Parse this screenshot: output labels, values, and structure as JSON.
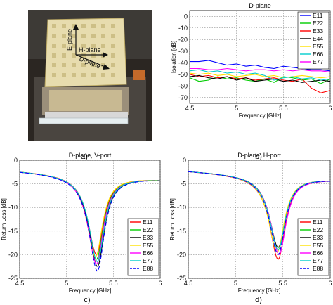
{
  "captions": {
    "a": "a)",
    "b": "b)",
    "c": "c)",
    "d": "d)"
  },
  "photo": {
    "labels": {
      "e_plane": "E-plane",
      "h_plane": "H-plane",
      "d_plane": "D-plane"
    }
  },
  "chart_data": [
    {
      "id": "b",
      "type": "line",
      "title": "D-plane",
      "xlabel": "Frequency [GHz]",
      "ylabel": "Isolation [dB]",
      "xlim": [
        4.5,
        6
      ],
      "ylim": [
        -75,
        5
      ],
      "xticks": [
        4.5,
        5,
        5.5,
        6
      ],
      "xtick_labels": [
        "4.5",
        "5",
        "5.5",
        "6"
      ],
      "yticks": [
        0,
        -10,
        -20,
        -30,
        -40,
        -50,
        -60,
        -70
      ],
      "ytick_labels": [
        "0",
        "-10",
        "-20",
        "-30",
        "-40",
        "-50",
        "-60",
        "-70"
      ],
      "grid": true,
      "legend_position": "top-right",
      "series": [
        {
          "name": "E11",
          "color": "#0000ff",
          "dash": "",
          "x": [
            4.5,
            4.6,
            4.7,
            4.8,
            4.9,
            5.0,
            5.1,
            5.2,
            5.3,
            5.4,
            5.5,
            5.6,
            5.7,
            5.8,
            5.9,
            6.0
          ],
          "y": [
            -39,
            -39,
            -38,
            -40,
            -42,
            -41,
            -43,
            -42,
            -44,
            -45,
            -43,
            -44,
            -45,
            -46,
            -46,
            -47
          ]
        },
        {
          "name": "E22",
          "color": "#00cc00",
          "dash": "",
          "x": [
            4.5,
            4.6,
            4.7,
            4.8,
            4.9,
            5.0,
            5.1,
            5.2,
            5.3,
            5.4,
            5.5,
            5.6,
            5.7,
            5.8,
            5.9,
            6.0
          ],
          "y": [
            -53,
            -56,
            -55,
            -52,
            -54,
            -53,
            -55,
            -56,
            -54,
            -57,
            -52,
            -53,
            -55,
            -54,
            -58,
            -54
          ]
        },
        {
          "name": "E33",
          "color": "#ff0000",
          "dash": "",
          "x": [
            4.5,
            4.6,
            4.7,
            4.8,
            4.9,
            5.0,
            5.1,
            5.2,
            5.3,
            5.4,
            5.5,
            5.6,
            5.7,
            5.8,
            5.9,
            6.0
          ],
          "y": [
            -50,
            -52,
            -51,
            -53,
            -52,
            -54,
            -53,
            -55,
            -54,
            -53,
            -55,
            -56,
            -54,
            -62,
            -66,
            -64
          ]
        },
        {
          "name": "E44",
          "color": "#000000",
          "dash": "",
          "x": [
            4.5,
            4.6,
            4.7,
            4.8,
            4.9,
            5.0,
            5.1,
            5.2,
            5.3,
            5.4,
            5.5,
            5.6,
            5.7,
            5.8,
            5.9,
            6.0
          ],
          "y": [
            -52,
            -51,
            -53,
            -54,
            -52,
            -55,
            -53,
            -56,
            -55,
            -54,
            -56,
            -55,
            -57,
            -56,
            -55,
            -56
          ]
        },
        {
          "name": "E55",
          "color": "#ffe000",
          "dash": "",
          "x": [
            4.5,
            4.6,
            4.7,
            4.8,
            4.9,
            5.0,
            5.1,
            5.2,
            5.3,
            5.4,
            5.5,
            5.6,
            5.7,
            5.8,
            5.9,
            6.0
          ],
          "y": [
            -49,
            -50,
            -49,
            -51,
            -50,
            -52,
            -51,
            -50,
            -52,
            -51,
            -53,
            -52,
            -51,
            -52,
            -53,
            -52
          ]
        },
        {
          "name": "E66",
          "color": "#00cccc",
          "dash": "",
          "x": [
            4.5,
            4.6,
            4.7,
            4.8,
            4.9,
            5.0,
            5.1,
            5.2,
            5.3,
            5.4,
            5.5,
            5.6,
            5.7,
            5.8,
            5.9,
            6.0
          ],
          "y": [
            -47,
            -46,
            -48,
            -47,
            -49,
            -48,
            -50,
            -49,
            -51,
            -55,
            -53,
            -52,
            -54,
            -53,
            -55,
            -54
          ]
        },
        {
          "name": "E77",
          "color": "#ff00ff",
          "dash": "",
          "x": [
            4.5,
            4.6,
            4.7,
            4.8,
            4.9,
            5.0,
            5.1,
            5.2,
            5.3,
            5.4,
            5.5,
            5.6,
            5.7,
            5.8,
            5.9,
            6.0
          ],
          "y": [
            -45,
            -45,
            -46,
            -46,
            -45,
            -46,
            -47,
            -46,
            -46,
            -47,
            -46,
            -47,
            -46,
            -47,
            -47,
            -48
          ]
        }
      ]
    },
    {
      "id": "c",
      "type": "line",
      "title": "D-plane, V-port",
      "xlabel": "Frequency [GHz]",
      "ylabel": "Return Loss [dB]",
      "xlim": [
        4.5,
        6
      ],
      "ylim": [
        -25,
        0
      ],
      "xticks": [
        4.5,
        5,
        5.5,
        6
      ],
      "xtick_labels": [
        "4.5",
        "5",
        "5.5",
        "6"
      ],
      "yticks": [
        0,
        -5,
        -10,
        -15,
        -20,
        -25
      ],
      "ytick_labels": [
        "0",
        "-5",
        "-10",
        "-15",
        "-20",
        "-25"
      ],
      "grid": true,
      "legend_position": "bottom-right",
      "series": [
        {
          "name": "E11",
          "color": "#ff0000",
          "dash": "",
          "f0": 5.32,
          "ymin": -20.0
        },
        {
          "name": "E22",
          "color": "#00cc00",
          "dash": "",
          "f0": 5.32,
          "ymin": -21.0
        },
        {
          "name": "E33",
          "color": "#000000",
          "dash": "",
          "f0": 5.33,
          "ymin": -22.5
        },
        {
          "name": "E55",
          "color": "#ffe000",
          "dash": "",
          "f0": 5.31,
          "ymin": -20.5
        },
        {
          "name": "E66",
          "color": "#ff00ff",
          "dash": "",
          "f0": 5.32,
          "ymin": -22.0
        },
        {
          "name": "E77",
          "color": "#00cccc",
          "dash": "",
          "f0": 5.33,
          "ymin": -21.5
        },
        {
          "name": "E88",
          "color": "#0000ff",
          "dash": "5,3",
          "f0": 5.33,
          "ymin": -23.5
        }
      ]
    },
    {
      "id": "d",
      "type": "line",
      "title": "D-plane, H-port",
      "xlabel": "Frequency [GHz]",
      "ylabel": "Return Loss [dB]",
      "xlim": [
        4.5,
        6
      ],
      "ylim": [
        -25,
        0
      ],
      "xticks": [
        4.5,
        5,
        5.5,
        6
      ],
      "xtick_labels": [
        "4.5",
        "5",
        "5.5",
        "6"
      ],
      "yticks": [
        0,
        -5,
        -10,
        -15,
        -20,
        -25
      ],
      "ytick_labels": [
        "0",
        "-5",
        "-10",
        "-15",
        "-20",
        "-25"
      ],
      "grid": true,
      "legend_position": "bottom-right",
      "series": [
        {
          "name": "E11",
          "color": "#ff0000",
          "dash": "",
          "f0": 5.45,
          "ymin": -21.0
        },
        {
          "name": "E22",
          "color": "#00cc00",
          "dash": "",
          "f0": 5.45,
          "ymin": -19.0
        },
        {
          "name": "E33",
          "color": "#000000",
          "dash": "",
          "f0": 5.45,
          "ymin": -18.5
        },
        {
          "name": "E55",
          "color": "#ffe000",
          "dash": "",
          "f0": 5.44,
          "ymin": -19.5
        },
        {
          "name": "E66",
          "color": "#ff00ff",
          "dash": "",
          "f0": 5.46,
          "ymin": -20.0
        },
        {
          "name": "E77",
          "color": "#00cccc",
          "dash": "",
          "f0": 5.45,
          "ymin": -19.0
        },
        {
          "name": "E88",
          "color": "#0000ff",
          "dash": "5,3",
          "f0": 5.45,
          "ymin": -20.0
        }
      ]
    }
  ]
}
